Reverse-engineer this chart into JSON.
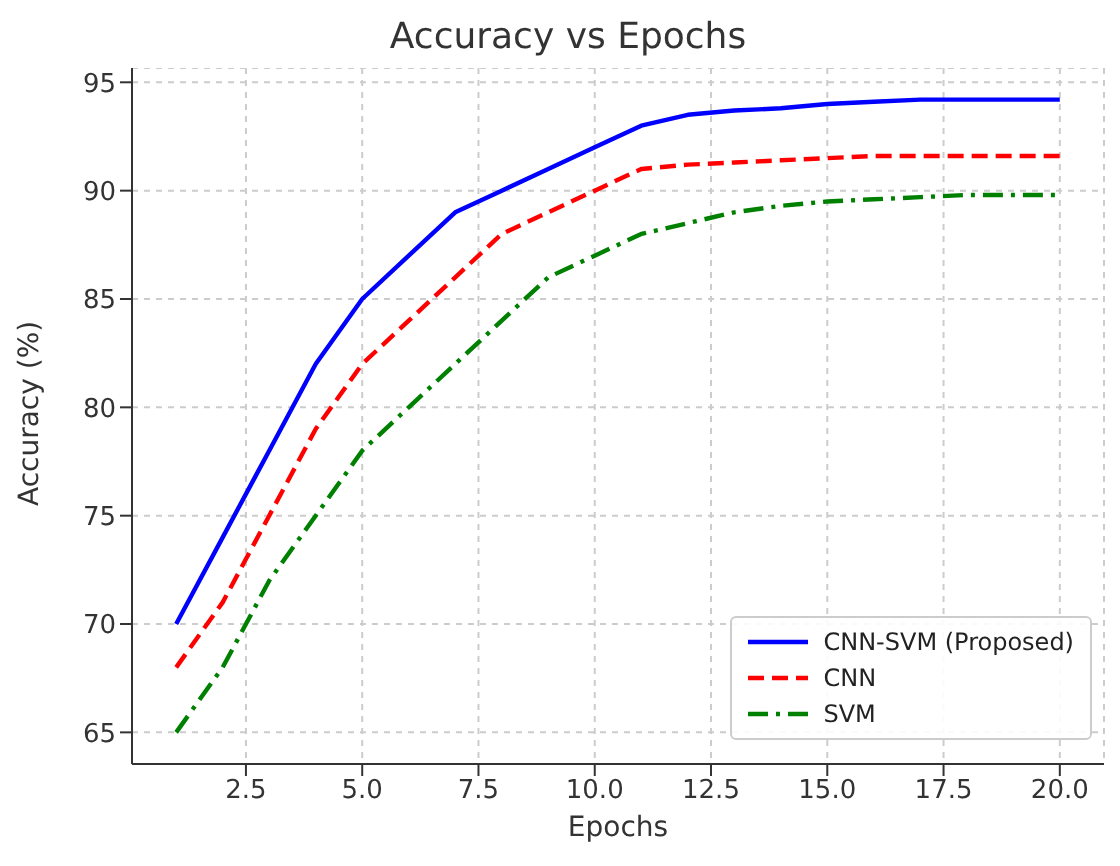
{
  "chart_data": {
    "type": "line",
    "title": "Accuracy vs Epochs",
    "xlabel": "Epochs",
    "ylabel": "Accuracy (%)",
    "x": [
      1,
      2,
      3,
      4,
      5,
      6,
      7,
      8,
      9,
      10,
      11,
      12,
      13,
      14,
      15,
      16,
      17,
      18,
      19,
      20
    ],
    "series": [
      {
        "name": "CNN-SVM (Proposed)",
        "color": "#0000ff",
        "line_style": "solid",
        "values": [
          70,
          74,
          78,
          82,
          85,
          87,
          89,
          90,
          91,
          92,
          93,
          93.5,
          93.7,
          93.8,
          94,
          94.1,
          94.2,
          94.2,
          94.2,
          94.2
        ]
      },
      {
        "name": "CNN",
        "color": "#ff0000",
        "line_style": "dashed",
        "values": [
          68,
          71,
          75,
          79,
          82,
          84,
          86,
          88,
          89,
          90,
          91,
          91.2,
          91.3,
          91.4,
          91.5,
          91.6,
          91.6,
          91.6,
          91.6,
          91.6
        ]
      },
      {
        "name": "SVM",
        "color": "#008000",
        "line_style": "dashdot",
        "values": [
          65,
          68,
          72,
          75,
          78,
          80,
          82,
          84,
          86,
          87,
          88,
          88.5,
          89,
          89.3,
          89.5,
          89.6,
          89.7,
          89.8,
          89.8,
          89.8
        ]
      }
    ],
    "xlim": [
      0.05,
      20.95
    ],
    "xticks": [
      {
        "value": 2.5,
        "label": "2.5"
      },
      {
        "value": 5,
        "label": "5.0"
      },
      {
        "value": 7.5,
        "label": "7.5"
      },
      {
        "value": 10,
        "label": "10.0"
      },
      {
        "value": 12.5,
        "label": "12.5"
      },
      {
        "value": 15,
        "label": "15.0"
      },
      {
        "value": 17.5,
        "label": "17.5"
      },
      {
        "value": 20,
        "label": "20.0"
      }
    ],
    "ylim": [
      63.54,
      95.66
    ],
    "yticks": [
      65,
      70,
      75,
      80,
      85,
      90,
      95
    ],
    "grid": true,
    "legend": "bottom right",
    "marker": "none"
  }
}
